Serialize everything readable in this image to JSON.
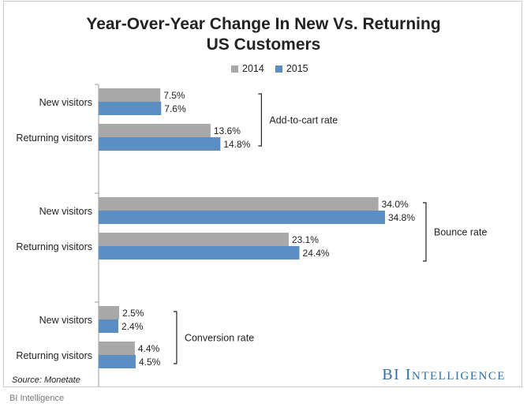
{
  "title_lines": [
    "Year-Over-Year Change In New Vs. Returning",
    "US Customers"
  ],
  "legend": [
    {
      "label": "2014",
      "color": "#a8a8a8"
    },
    {
      "label": "2015",
      "color": "#5b8fc4"
    }
  ],
  "source": "Source: Monetate",
  "brand": {
    "first": "BI",
    "second": "Intelligence"
  },
  "caption": "BI Intelligence",
  "chart_data": {
    "type": "bar",
    "orientation": "horizontal",
    "title": "Year-Over-Year Change In New Vs. Returning US Customers",
    "series_names": [
      "2014",
      "2015"
    ],
    "groups": [
      {
        "name": "Add-to-cart rate",
        "rows": [
          {
            "label": "New visitors",
            "values": [
              7.5,
              7.6
            ],
            "value_labels": [
              "7.5%",
              "7.6%"
            ]
          },
          {
            "label": "Returning visitors",
            "values": [
              13.6,
              14.8
            ],
            "value_labels": [
              "13.6%",
              "14.8%"
            ]
          }
        ]
      },
      {
        "name": "Bounce rate",
        "rows": [
          {
            "label": "New visitors",
            "values": [
              34.0,
              34.8
            ],
            "value_labels": [
              "34.0%",
              "34.8%"
            ]
          },
          {
            "label": "Returning visitors",
            "values": [
              23.1,
              24.4
            ],
            "value_labels": [
              "23.1%",
              "24.4%"
            ]
          }
        ]
      },
      {
        "name": "Conversion rate",
        "rows": [
          {
            "label": "New visitors",
            "values": [
              2.5,
              2.4
            ],
            "value_labels": [
              "2.5%",
              "2.4%"
            ]
          },
          {
            "label": "Returning visitors",
            "values": [
              4.4,
              4.5
            ],
            "value_labels": [
              "4.4%",
              "4.5%"
            ]
          }
        ]
      }
    ],
    "xlim": [
      0,
      40
    ],
    "grid": false
  }
}
